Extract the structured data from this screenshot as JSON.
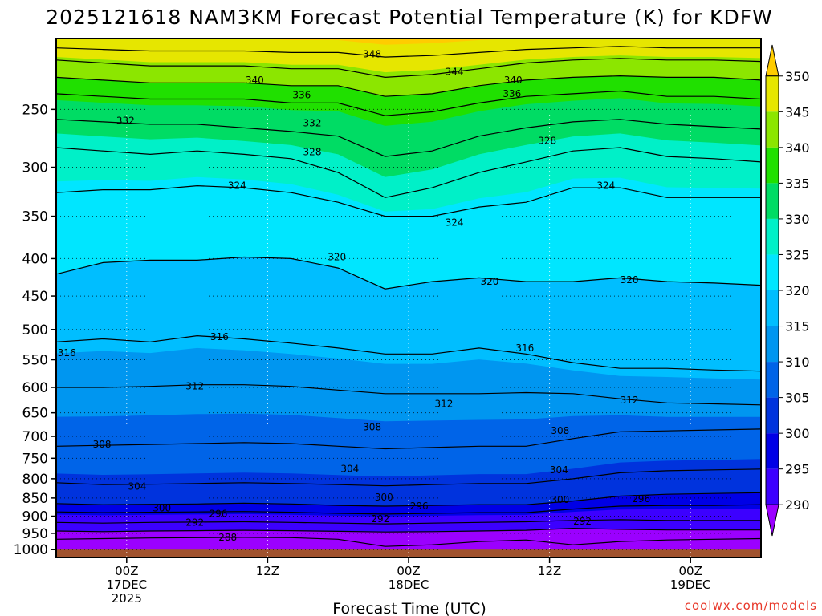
{
  "chart_data": {
    "type": "heatmap",
    "title": "2025121618 NAM3KM Forecast Potential Temperature (K) for KDFW",
    "xlabel": "Forecast Time (UTC)",
    "ylabel": "",
    "x_unit": "hours since 2025-12-16 18Z",
    "xlim": [
      0,
      60
    ],
    "x_ticks": [
      {
        "x": 6,
        "lines": [
          "00Z",
          "17DEC",
          "2025"
        ]
      },
      {
        "x": 18,
        "lines": [
          "12Z"
        ]
      },
      {
        "x": 30,
        "lines": [
          "00Z",
          "18DEC"
        ]
      },
      {
        "x": 42,
        "lines": [
          "12Z"
        ]
      },
      {
        "x": 54,
        "lines": [
          "00Z",
          "19DEC"
        ]
      }
    ],
    "y_ticks": [
      250,
      300,
      350,
      400,
      450,
      500,
      550,
      600,
      650,
      700,
      750,
      800,
      850,
      900,
      950,
      1000
    ],
    "ylim": [
      200,
      1025
    ],
    "y_scale": "log-pressure",
    "grid": true,
    "colorbar": {
      "placement": "right",
      "levels": [
        290,
        295,
        300,
        305,
        310,
        315,
        320,
        325,
        330,
        335,
        340,
        345,
        350
      ],
      "labels": [
        "350",
        "345",
        "340",
        "335",
        "330",
        "325",
        "320",
        "315",
        "310",
        "305",
        "300",
        "295",
        "290"
      ],
      "colors": [
        "#9b00ff",
        "#3c00ff",
        "#0000e6",
        "#0033dd",
        "#0064e8",
        "#0096f0",
        "#00beff",
        "#00e6ff",
        "#00f0c8",
        "#00dc64",
        "#20e000",
        "#8ce600",
        "#e6e600",
        "#ffcc00"
      ]
    },
    "time_x": [
      0,
      4,
      8,
      12,
      16,
      20,
      24,
      28,
      32,
      36,
      40,
      44,
      48,
      52,
      56,
      60
    ],
    "isentropes": [
      {
        "value": 288,
        "p": [
          968,
          966,
          964,
          963,
          962,
          963,
          968,
          990,
          985,
          975,
          970,
          985,
          975,
          970,
          968,
          966
        ]
      },
      {
        "value": 290,
        "p": [
          943,
          945,
          943,
          942,
          941,
          942,
          944,
          946,
          945,
          943,
          941,
          935,
          938,
          940,
          940,
          940
        ]
      },
      {
        "value": 292,
        "p": [
          918,
          920,
          918,
          917,
          916,
          918,
          920,
          922,
          920,
          918,
          916,
          912,
          910,
          912,
          912,
          912
        ]
      },
      {
        "value": 296,
        "p": [
          888,
          890,
          889,
          888,
          887,
          889,
          892,
          894,
          892,
          890,
          890,
          880,
          872,
          870,
          870,
          868
        ]
      },
      {
        "value": 300,
        "p": [
          865,
          868,
          867,
          866,
          864,
          866,
          870,
          872,
          870,
          868,
          868,
          858,
          845,
          840,
          838,
          836
        ]
      },
      {
        "value": 304,
        "p": [
          810,
          815,
          814,
          812,
          810,
          812,
          815,
          818,
          815,
          812,
          812,
          800,
          785,
          780,
          778,
          776
        ]
      },
      {
        "value": 308,
        "p": [
          722,
          720,
          718,
          716,
          714,
          716,
          722,
          728,
          725,
          722,
          722,
          705,
          690,
          688,
          686,
          684
        ]
      },
      {
        "value": 312,
        "p": [
          600,
          600,
          598,
          595,
          595,
          598,
          605,
          612,
          612,
          612,
          610,
          612,
          622,
          630,
          632,
          634
        ]
      },
      {
        "value": 316,
        "p": [
          520,
          515,
          520,
          510,
          515,
          522,
          530,
          540,
          540,
          530,
          540,
          555,
          565,
          565,
          568,
          570
        ]
      },
      {
        "value": 320,
        "p": [
          420,
          405,
          402,
          402,
          398,
          400,
          412,
          440,
          430,
          425,
          430,
          430,
          425,
          430,
          432,
          435
        ]
      },
      {
        "value": 324,
        "p": [
          325,
          322,
          322,
          318,
          320,
          325,
          335,
          350,
          350,
          340,
          335,
          320,
          320,
          330,
          330,
          330
        ]
      },
      {
        "value": 328,
        "p": [
          282,
          285,
          288,
          285,
          288,
          292,
          305,
          330,
          320,
          305,
          295,
          285,
          282,
          290,
          292,
          295
        ]
      },
      {
        "value": 332,
        "p": [
          258,
          260,
          262,
          262,
          265,
          268,
          272,
          290,
          285,
          272,
          265,
          260,
          258,
          262,
          264,
          266
        ]
      },
      {
        "value": 336,
        "p": [
          238,
          240,
          242,
          242,
          242,
          245,
          245,
          255,
          252,
          245,
          240,
          238,
          236,
          240,
          240,
          242
        ]
      },
      {
        "value": 340,
        "p": [
          226,
          228,
          230,
          230,
          230,
          232,
          232,
          240,
          238,
          232,
          228,
          226,
          225,
          226,
          226,
          228
        ]
      },
      {
        "value": 344,
        "p": [
          214,
          216,
          218,
          218,
          218,
          220,
          220,
          226,
          224,
          220,
          216,
          214,
          213,
          214,
          214,
          215
        ]
      },
      {
        "value": 348,
        "p": [
          206,
          207,
          208,
          208,
          208,
          209,
          209,
          212,
          211,
          209,
          207,
          206,
          205,
          206,
          206,
          206
        ]
      }
    ],
    "contour_labels": [
      {
        "value": "288",
        "x": 14.6,
        "p": 962
      },
      {
        "value": "292",
        "x": 11.8,
        "p": 918
      },
      {
        "value": "296",
        "x": 13.8,
        "p": 893
      },
      {
        "value": "300",
        "x": 9.0,
        "p": 878
      },
      {
        "value": "304",
        "x": 6.9,
        "p": 820
      },
      {
        "value": "308",
        "x": 3.9,
        "p": 718
      },
      {
        "value": "312",
        "x": 11.8,
        "p": 598
      },
      {
        "value": "316",
        "x": 0.9,
        "p": 538
      },
      {
        "value": "316",
        "x": 13.9,
        "p": 512
      },
      {
        "value": "320",
        "x": 23.9,
        "p": 398
      },
      {
        "value": "324",
        "x": 15.4,
        "p": 318
      },
      {
        "value": "328",
        "x": 21.8,
        "p": 286
      },
      {
        "value": "332",
        "x": 5.9,
        "p": 259
      },
      {
        "value": "336",
        "x": 20.9,
        "p": 239
      },
      {
        "value": "340",
        "x": 16.9,
        "p": 228
      },
      {
        "value": "348",
        "x": 26.9,
        "p": 210
      },
      {
        "value": "344",
        "x": 33.9,
        "p": 222
      },
      {
        "value": "340",
        "x": 38.9,
        "p": 228
      },
      {
        "value": "336",
        "x": 38.8,
        "p": 238
      },
      {
        "value": "332",
        "x": 21.8,
        "p": 261
      },
      {
        "value": "328",
        "x": 41.8,
        "p": 276
      },
      {
        "value": "324",
        "x": 46.8,
        "p": 318
      },
      {
        "value": "324",
        "x": 33.9,
        "p": 357
      },
      {
        "value": "320",
        "x": 36.9,
        "p": 430
      },
      {
        "value": "320",
        "x": 48.8,
        "p": 428
      },
      {
        "value": "316",
        "x": 39.9,
        "p": 530
      },
      {
        "value": "312",
        "x": 33.0,
        "p": 632
      },
      {
        "value": "312",
        "x": 48.8,
        "p": 625
      },
      {
        "value": "308",
        "x": 26.9,
        "p": 680
      },
      {
        "value": "308",
        "x": 42.9,
        "p": 688
      },
      {
        "value": "304",
        "x": 25.0,
        "p": 775
      },
      {
        "value": "304",
        "x": 42.8,
        "p": 778
      },
      {
        "value": "300",
        "x": 27.9,
        "p": 848
      },
      {
        "value": "300",
        "x": 42.9,
        "p": 855
      },
      {
        "value": "296",
        "x": 30.9,
        "p": 872
      },
      {
        "value": "296",
        "x": 49.8,
        "p": 852
      },
      {
        "value": "292",
        "x": 27.6,
        "p": 908
      },
      {
        "value": "292",
        "x": 44.8,
        "p": 915
      }
    ]
  },
  "credit": "coolwx.com/models"
}
